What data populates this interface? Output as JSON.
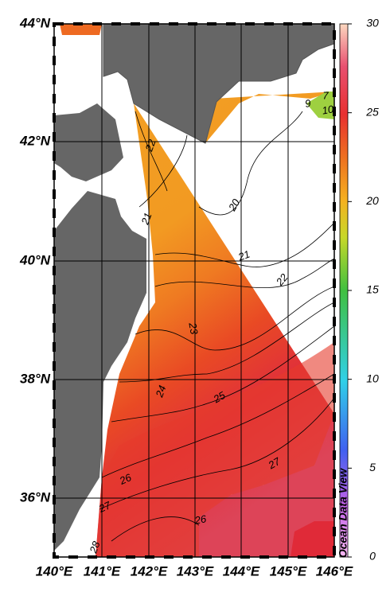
{
  "map": {
    "lat_labels": [
      "44°N",
      "42°N",
      "40°N",
      "38°N",
      "36°N"
    ],
    "lon_labels": [
      "140°E",
      "141°E",
      "142°E",
      "143°E",
      "144°E",
      "145°E",
      "146°E"
    ],
    "colorbar": {
      "range": [
        0,
        30
      ],
      "ticks": [
        0,
        5,
        10,
        15,
        20,
        25,
        30
      ]
    },
    "contour_labels": [
      22,
      21,
      20,
      21,
      22,
      23,
      24,
      25,
      26,
      27,
      26,
      27,
      28,
      9,
      7,
      10
    ],
    "watermark": "Ocean Data View"
  }
}
